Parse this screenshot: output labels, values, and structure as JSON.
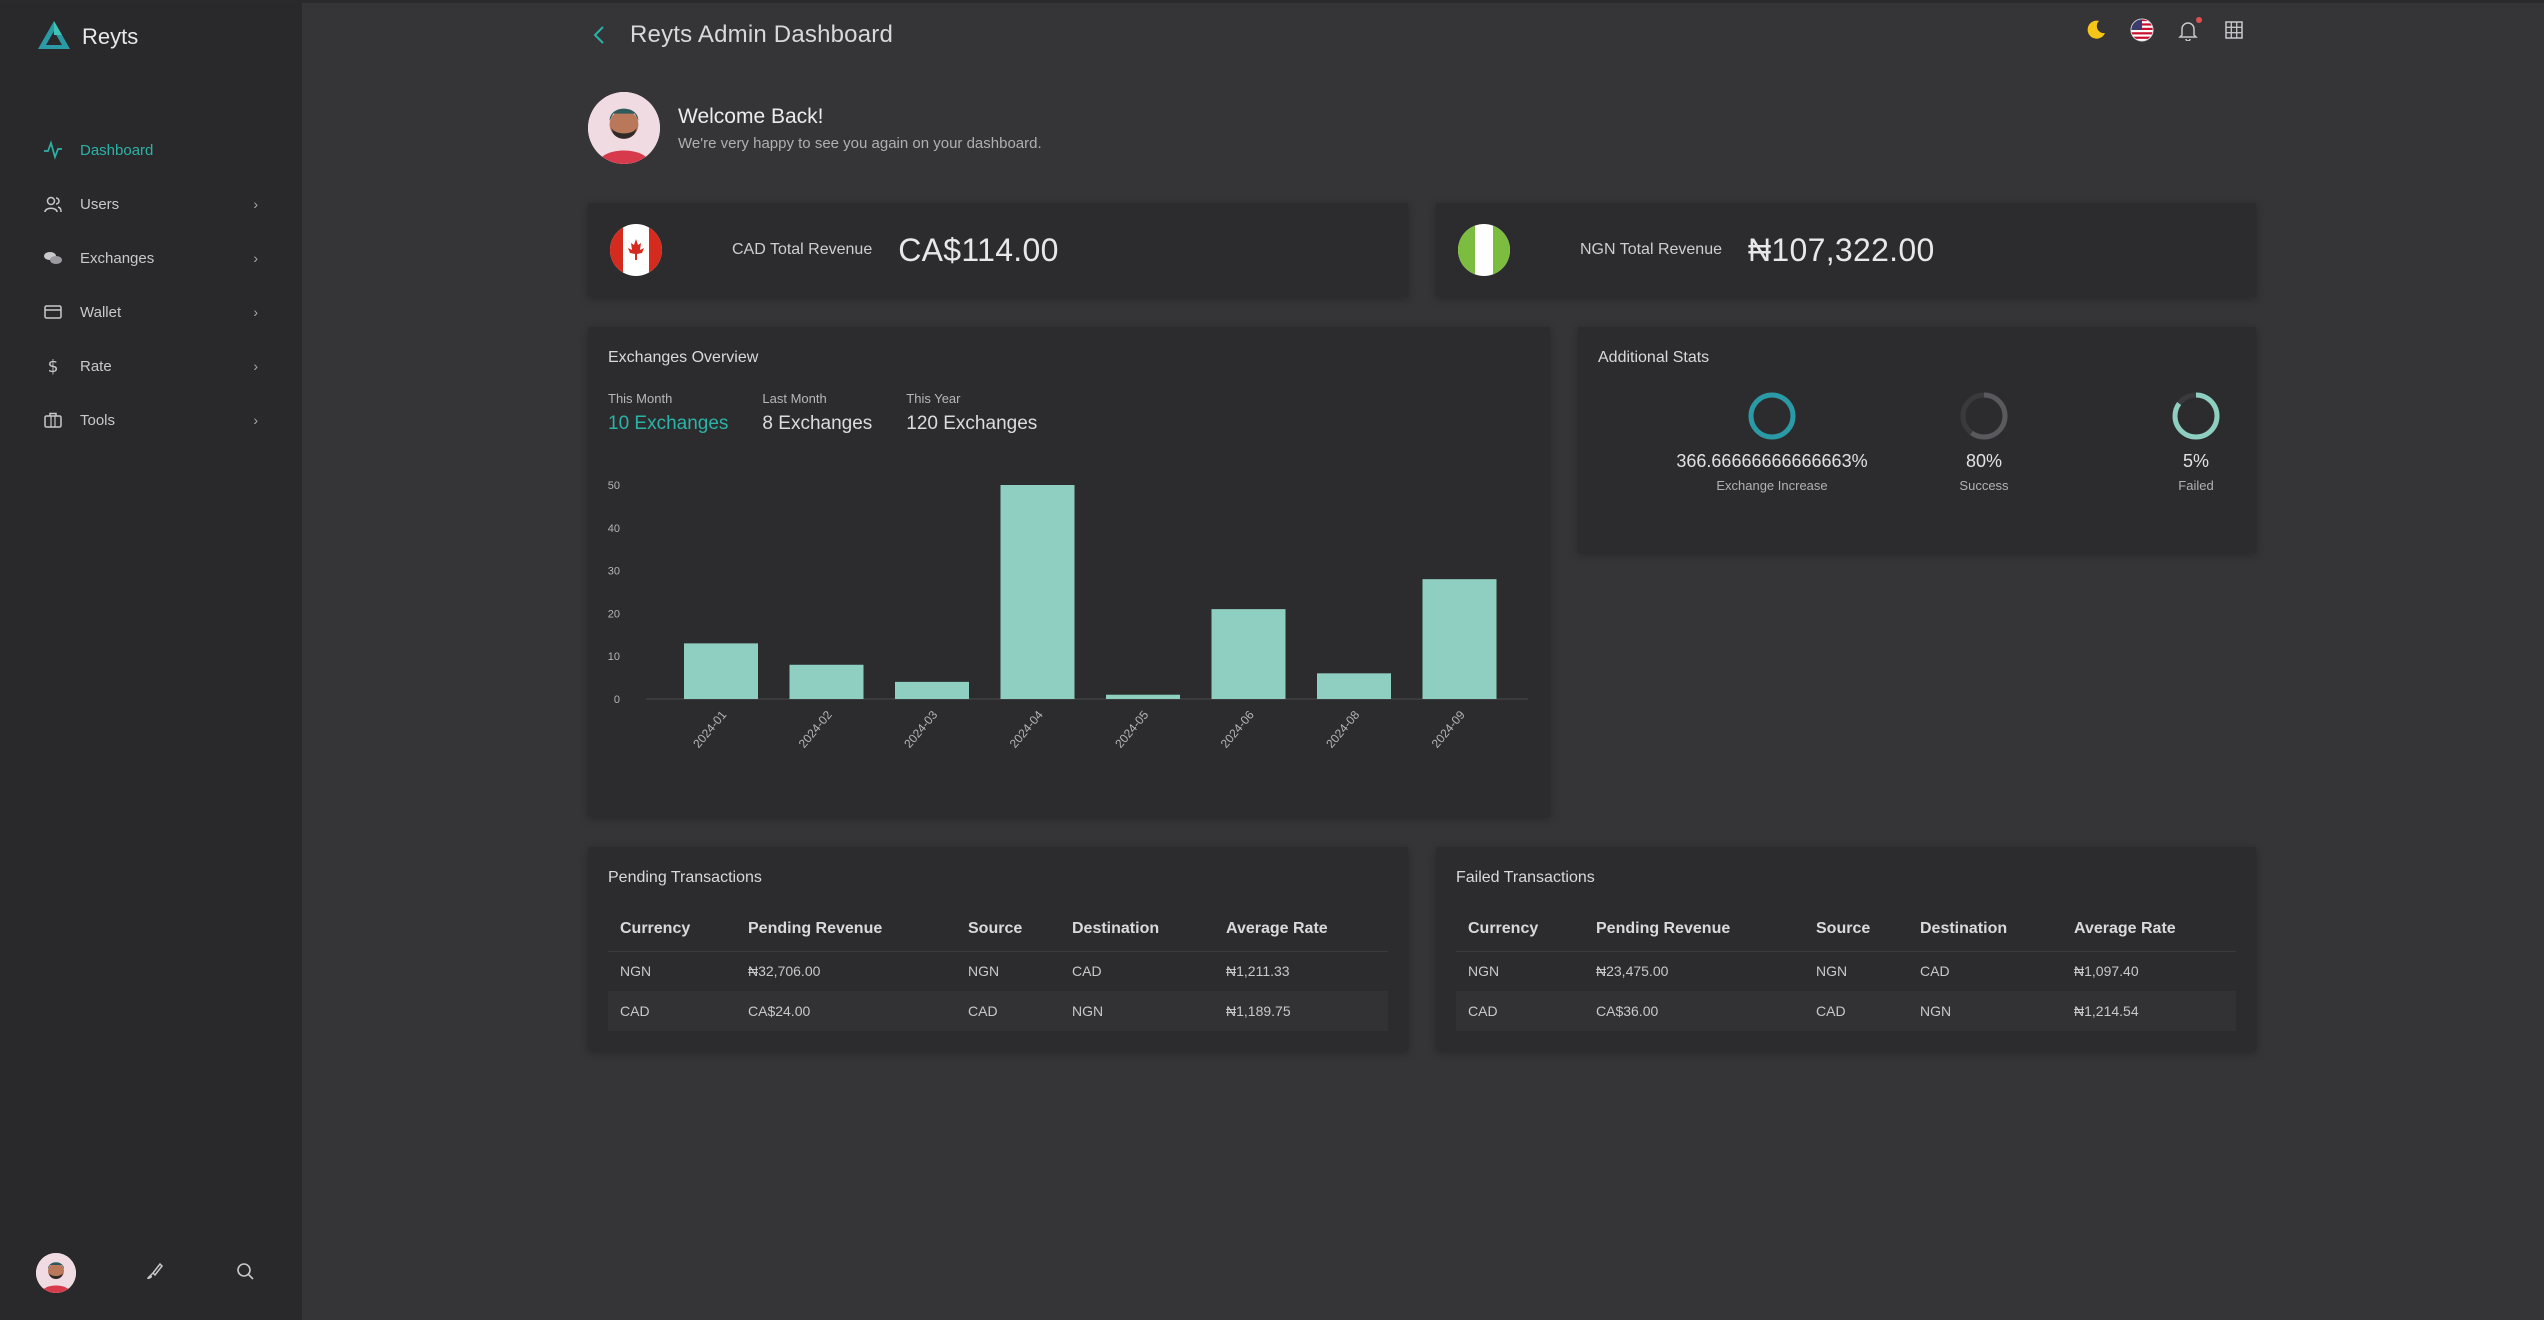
{
  "app": {
    "name": "Reyts"
  },
  "header": {
    "title": "Reyts Admin Dashboard"
  },
  "sidebar": {
    "items": [
      {
        "label": "Dashboard",
        "icon": "activity-icon",
        "active": true
      },
      {
        "label": "Users",
        "icon": "users-icon"
      },
      {
        "label": "Exchanges",
        "icon": "coins-icon"
      },
      {
        "label": "Wallet",
        "icon": "wallet-icon"
      },
      {
        "label": "Rate",
        "icon": "dollar-icon"
      },
      {
        "label": "Tools",
        "icon": "briefcase-icon"
      }
    ]
  },
  "welcome": {
    "title": "Welcome Back!",
    "subtitle": "We're very happy to see you again on your dashboard."
  },
  "revenue": {
    "cad": {
      "label": "CAD Total Revenue",
      "value": "CA$114.00"
    },
    "ngn": {
      "label": "NGN Total Revenue",
      "value": "₦107,322.00"
    }
  },
  "overview": {
    "title": "Exchanges Overview",
    "tabs": [
      {
        "label": "This Month",
        "value": "10 Exchanges",
        "active": true
      },
      {
        "label": "Last Month",
        "value": "8 Exchanges"
      },
      {
        "label": "This Year",
        "value": "120 Exchanges"
      }
    ]
  },
  "chart_data": {
    "type": "bar",
    "categories": [
      "2024-01",
      "2024-02",
      "2024-03",
      "2024-04",
      "2024-05",
      "2024-06",
      "2024-08",
      "2024-09"
    ],
    "values": [
      13,
      8,
      4,
      50,
      1,
      21,
      6,
      28
    ],
    "yticks": [
      0,
      10,
      20,
      30,
      40,
      50
    ],
    "ylim": [
      0,
      50
    ],
    "bar_color": "#8ecfc2",
    "grid": false
  },
  "stats": {
    "title": "Additional Stats",
    "items": [
      {
        "value": "366.66666666666663%",
        "label": "Exchange Increase",
        "fraction": 1.0,
        "color": "#2a9aa6"
      },
      {
        "value": "80%",
        "label": "Success",
        "fraction": 0.6,
        "color": "#5a5a5e"
      },
      {
        "value": "5%",
        "label": "Failed",
        "fraction": 0.85,
        "color": "#8ecfc2"
      }
    ]
  },
  "pending": {
    "title": "Pending Transactions",
    "columns": [
      "Currency",
      "Pending Revenue",
      "Source",
      "Destination",
      "Average Rate"
    ],
    "rows": [
      [
        "NGN",
        "₦32,706.00",
        "NGN",
        "CAD",
        "₦1,211.33"
      ],
      [
        "CAD",
        "CA$24.00",
        "CAD",
        "NGN",
        "₦1,189.75"
      ]
    ]
  },
  "failed": {
    "title": "Failed Transactions",
    "columns": [
      "Currency",
      "Pending Revenue",
      "Source",
      "Destination",
      "Average Rate"
    ],
    "rows": [
      [
        "NGN",
        "₦23,475.00",
        "NGN",
        "CAD",
        "₦1,097.40"
      ],
      [
        "CAD",
        "CA$36.00",
        "CAD",
        "NGN",
        "₦1,214.54"
      ]
    ]
  },
  "colors": {
    "accent": "#2bb3a7",
    "background": "#353538",
    "sidebar": "#29292b",
    "card": "#2c2c2e"
  }
}
